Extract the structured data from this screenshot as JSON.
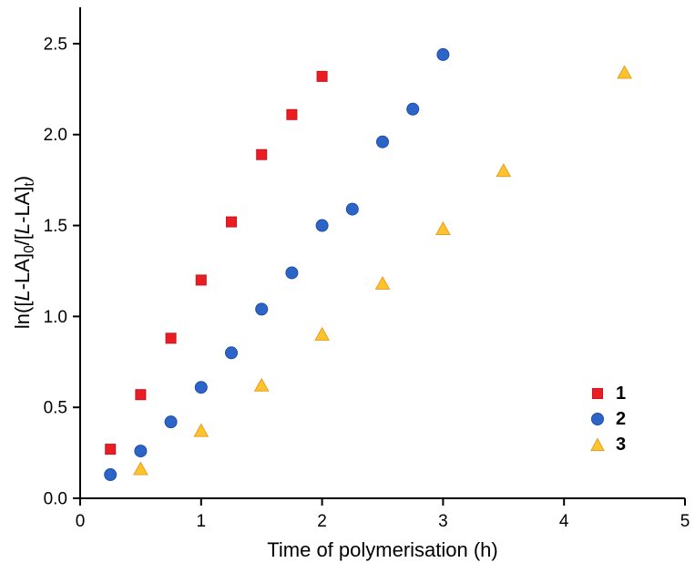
{
  "page": {
    "background": "#ffffff"
  },
  "chart_data": {
    "type": "scatter",
    "title": "",
    "xlabel": "Time of polymerisation (h)",
    "ylabel": "ln([L-LA]0/[L-LA]t)",
    "ylabel_parts": [
      {
        "t": "ln([",
        "style": "normal"
      },
      {
        "t": "L",
        "style": "italic"
      },
      {
        "t": "-LA]",
        "style": "normal"
      },
      {
        "t": "0",
        "style": "sub"
      },
      {
        "t": "/[",
        "style": "normal"
      },
      {
        "t": "L",
        "style": "italic"
      },
      {
        "t": "-LA]",
        "style": "normal"
      },
      {
        "t": "t",
        "style": "sub"
      },
      {
        "t": ")",
        "style": "normal"
      }
    ],
    "xlim": [
      0,
      5
    ],
    "ylim": [
      0,
      2.7
    ],
    "xticks": [
      0,
      1,
      2,
      3,
      4,
      5
    ],
    "xtick_labels": [
      "0",
      "1",
      "2",
      "3",
      "4",
      "5"
    ],
    "yticks": [
      0,
      0.5,
      1,
      1.5,
      2,
      2.5
    ],
    "ytick_labels": [
      "0.0",
      "0.5",
      "1.0",
      "1.5",
      "2.0",
      "2.5"
    ],
    "grid": false,
    "legend": {
      "position": "inside-right",
      "entries": [
        "1",
        "2",
        "3"
      ]
    },
    "axis_color": "#000000",
    "series": [
      {
        "name": "1",
        "marker": "square",
        "fill": "#ea1c24",
        "edge": "#c8151c",
        "points": [
          [
            0.25,
            0.27
          ],
          [
            0.5,
            0.57
          ],
          [
            0.75,
            0.88
          ],
          [
            1,
            1.2
          ],
          [
            1.25,
            1.52
          ],
          [
            1.5,
            1.89
          ],
          [
            1.75,
            2.11
          ],
          [
            2,
            2.32
          ]
        ]
      },
      {
        "name": "2",
        "marker": "circle",
        "fill": "#2d64c8",
        "edge": "#1e4fa5",
        "points": [
          [
            0.25,
            0.13
          ],
          [
            0.5,
            0.26
          ],
          [
            0.75,
            0.42
          ],
          [
            1,
            0.61
          ],
          [
            1.25,
            0.8
          ],
          [
            1.5,
            1.04
          ],
          [
            1.75,
            1.24
          ],
          [
            2,
            1.5
          ],
          [
            2.25,
            1.59
          ],
          [
            2.5,
            1.96
          ],
          [
            2.75,
            2.14
          ],
          [
            3,
            2.44
          ]
        ]
      },
      {
        "name": "3",
        "marker": "triangle",
        "fill": "#fec32d",
        "edge": "#e99d1e",
        "points": [
          [
            0.5,
            0.16
          ],
          [
            1,
            0.37
          ],
          [
            1.5,
            0.62
          ],
          [
            2,
            0.9
          ],
          [
            2.5,
            1.18
          ],
          [
            3,
            1.48
          ],
          [
            3.5,
            1.8
          ],
          [
            4.5,
            2.34
          ]
        ]
      }
    ]
  }
}
